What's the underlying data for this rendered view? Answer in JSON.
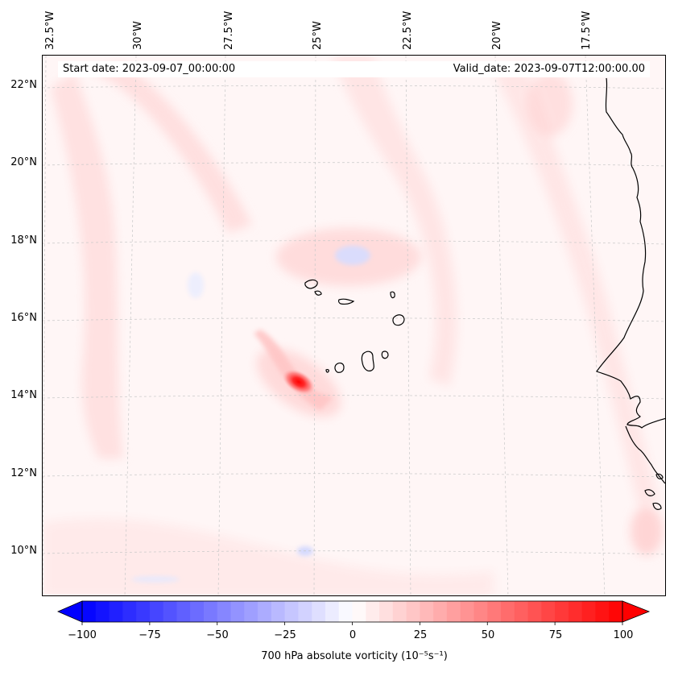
{
  "map": {
    "start_date": "Start date: 2023-09-07_00:00:00",
    "valid_date": "Valid_date: 2023-09-07T12:00:00.00",
    "longitude_labels": [
      "32.5°W",
      "30°W",
      "27.5°W",
      "25°W",
      "22.5°W",
      "20°W",
      "17.5°W"
    ],
    "latitude_labels": [
      "22°N",
      "20°N",
      "18°N",
      "16°N",
      "14°N",
      "12°N",
      "10°N"
    ],
    "extent": {
      "lon_west": -33.0,
      "lon_east": -15.0,
      "lat_south": 8.8,
      "lat_north": 22.8
    },
    "vorticity_max_center": {
      "lon": -25.3,
      "lat": 14.4
    },
    "colors": {
      "negative": "#0000ff",
      "zero": "#ffffff",
      "positive": "#ff0000",
      "coastline": "#000000",
      "grid": "#bfbfbf"
    }
  },
  "colorbar": {
    "label": "700 hPa absolute vorticity (10⁻⁵s⁻¹)",
    "min": -100,
    "max": 100,
    "tick_labels": [
      "−100",
      "−75",
      "−50",
      "−25",
      "0",
      "25",
      "50",
      "75",
      "100"
    ],
    "tick_values": [
      -100,
      -75,
      -50,
      -25,
      0,
      25,
      50,
      75,
      100
    ],
    "extend": "both"
  }
}
